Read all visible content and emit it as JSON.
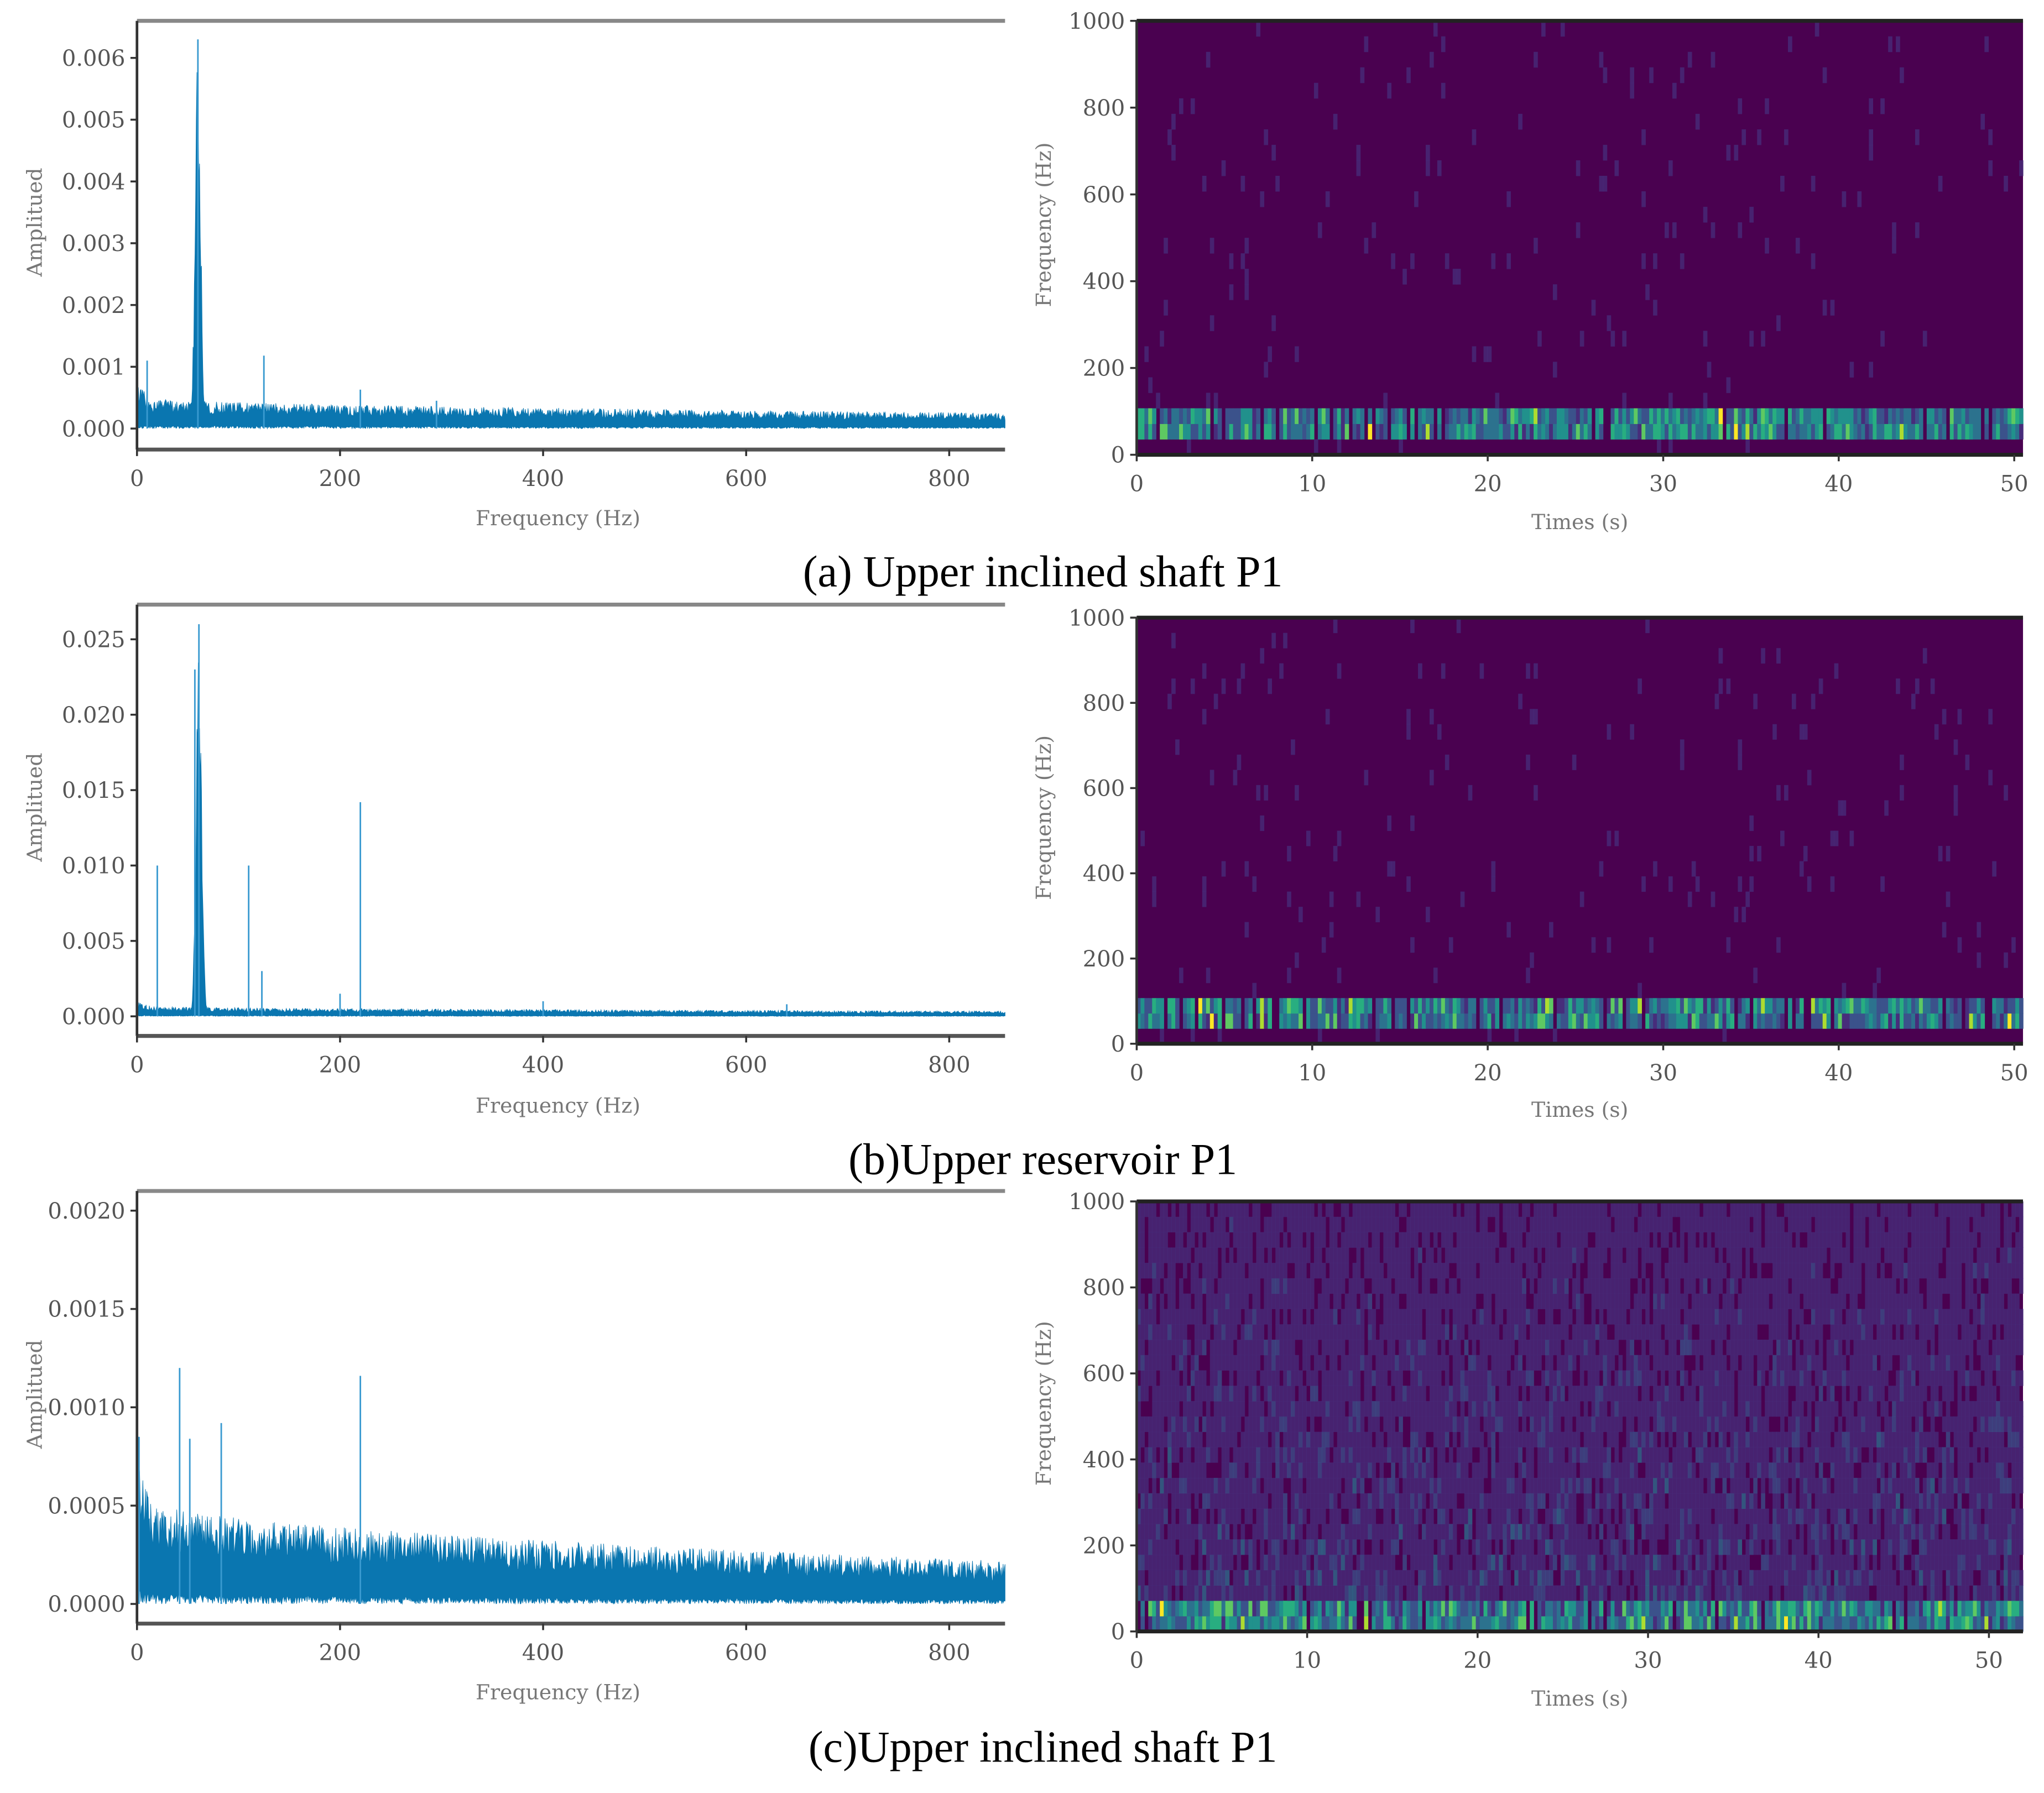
{
  "captions": {
    "a": "(a) Upper inclined shaft P1",
    "b": "(b)Upper reservoir P1",
    "c": "(c)Upper inclined shaft P1"
  },
  "colors": {
    "spectrum": "#0a76b0",
    "spectrogram_background": "#4a0150",
    "viridis": [
      "#4a0150",
      "#472d7b",
      "#3b528b",
      "#2c728e",
      "#21918c",
      "#28ae80",
      "#5ec962",
      "#addc30",
      "#fde725"
    ]
  },
  "chart_data": [
    {
      "id": "a-spectrum",
      "type": "line",
      "xlabel": "Frequency (Hz)",
      "ylabel": "Amplitued",
      "xlim": [
        0,
        855
      ],
      "ylim": [
        -0.00034,
        0.0066
      ],
      "xticks": [
        "0",
        "200",
        "400",
        "600",
        "800"
      ],
      "xtick_values": [
        0,
        200,
        400,
        600,
        800
      ],
      "yticks": [
        "0.000",
        "0.001",
        "0.002",
        "0.003",
        "0.004",
        "0.005",
        "0.006"
      ],
      "ytick_values": [
        0,
        0.001,
        0.002,
        0.003,
        0.004,
        0.005,
        0.006
      ],
      "noise_floor": {
        "start": 0.00045,
        "end": 0.00022
      },
      "peaks": [
        {
          "freq": 60,
          "amp": 0.0063,
          "width": 6
        },
        {
          "freq": 10,
          "amp": 0.0011,
          "width": 0
        },
        {
          "freq": 125,
          "amp": 0.00118,
          "width": 0
        },
        {
          "freq": 220,
          "amp": 0.00063,
          "width": 0
        },
        {
          "freq": 295,
          "amp": 0.00045,
          "width": 0
        }
      ]
    },
    {
      "id": "a-spectrogram",
      "type": "heatmap",
      "xlabel": "Times (s)",
      "ylabel": "Frequency (Hz)",
      "xlim": [
        0,
        50.5
      ],
      "ylim": [
        0,
        1000
      ],
      "xticks": [
        "0",
        "10",
        "20",
        "30",
        "40",
        "50"
      ],
      "xtick_values": [
        0,
        10,
        20,
        30,
        40,
        50
      ],
      "yticks": [
        "0",
        "200",
        "400",
        "600",
        "800",
        "1000"
      ],
      "ytick_values": [
        0,
        200,
        400,
        600,
        800,
        1000
      ],
      "energy_band_hz": [
        50,
        80
      ],
      "background_level": 0,
      "noise_level": 0.05
    },
    {
      "id": "b-spectrum",
      "type": "line",
      "xlabel": "Frequency (Hz)",
      "ylabel": "Amplitued",
      "xlim": [
        0,
        855
      ],
      "ylim": [
        -0.0013,
        0.0273
      ],
      "xticks": [
        "0",
        "200",
        "400",
        "600",
        "800"
      ],
      "xtick_values": [
        0,
        200,
        400,
        600,
        800
      ],
      "yticks": [
        "0.000",
        "0.005",
        "0.010",
        "0.015",
        "0.020",
        "0.025"
      ],
      "ytick_values": [
        0,
        0.005,
        0.01,
        0.015,
        0.02,
        0.025
      ],
      "noise_floor": {
        "start": 0.0006,
        "end": 0.0003
      },
      "peaks": [
        {
          "freq": 61,
          "amp": 0.026,
          "width": 6
        },
        {
          "freq": 57,
          "amp": 0.023,
          "width": 0
        },
        {
          "freq": 20,
          "amp": 0.01,
          "width": 0
        },
        {
          "freq": 110,
          "amp": 0.01,
          "width": 0
        },
        {
          "freq": 123,
          "amp": 0.003,
          "width": 0
        },
        {
          "freq": 200,
          "amp": 0.0015,
          "width": 0
        },
        {
          "freq": 220,
          "amp": 0.0142,
          "width": 0
        },
        {
          "freq": 400,
          "amp": 0.001,
          "width": 0
        },
        {
          "freq": 640,
          "amp": 0.0008,
          "width": 0
        }
      ]
    },
    {
      "id": "b-spectrogram",
      "type": "heatmap",
      "xlabel": "Times (s)",
      "ylabel": "Frequency (Hz)",
      "xlim": [
        0,
        50.5
      ],
      "ylim": [
        0,
        1000
      ],
      "xticks": [
        "0",
        "10",
        "20",
        "30",
        "40",
        "50"
      ],
      "xtick_values": [
        0,
        10,
        20,
        30,
        40,
        50
      ],
      "yticks": [
        "0",
        "200",
        "400",
        "600",
        "800",
        "1000"
      ],
      "ytick_values": [
        0,
        200,
        400,
        600,
        800,
        1000
      ],
      "energy_band_hz": [
        50,
        80
      ],
      "background_level": 0,
      "noise_level": 0.04
    },
    {
      "id": "c-spectrum",
      "type": "line",
      "xlabel": "Frequency (Hz)",
      "ylabel": "Amplitued",
      "xlim": [
        0,
        855
      ],
      "ylim": [
        -0.0001,
        0.0021
      ],
      "xticks": [
        "0",
        "200",
        "400",
        "600",
        "800"
      ],
      "xtick_values": [
        0,
        200,
        400,
        600,
        800
      ],
      "yticks": [
        "0.0000",
        "0.0005",
        "0.0010",
        "0.0015",
        "0.0020"
      ],
      "ytick_values": [
        0,
        0.0005,
        0.001,
        0.0015,
        0.002
      ],
      "noise_floor": {
        "start": 0.00048,
        "end": 0.00019
      },
      "peaks": [
        {
          "freq": 2,
          "amp": 0.00085,
          "width": 0
        },
        {
          "freq": 42,
          "amp": 0.0012,
          "width": 0
        },
        {
          "freq": 52,
          "amp": 0.00084,
          "width": 0
        },
        {
          "freq": 83,
          "amp": 0.00092,
          "width": 0
        },
        {
          "freq": 220,
          "amp": 0.00116,
          "width": 0
        }
      ]
    },
    {
      "id": "c-spectrogram",
      "type": "heatmap",
      "xlabel": "Times (s)",
      "ylabel": "Frequency (Hz)",
      "xlim": [
        0,
        52
      ],
      "ylim": [
        0,
        1000
      ],
      "xticks": [
        "0",
        "10",
        "20",
        "30",
        "40",
        "50"
      ],
      "xtick_values": [
        0,
        10,
        20,
        30,
        40,
        50
      ],
      "yticks": [
        "0",
        "200",
        "400",
        "600",
        "800",
        "1000"
      ],
      "ytick_values": [
        0,
        200,
        400,
        600,
        800,
        1000
      ],
      "energy_band_hz": [
        0,
        60
      ],
      "background_level": 0.08,
      "noise_level": 0.35
    }
  ]
}
